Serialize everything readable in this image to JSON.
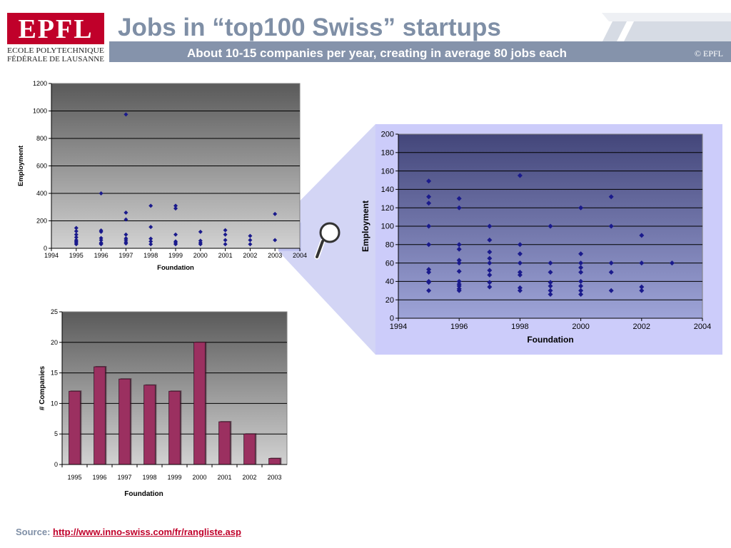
{
  "header": {
    "title": "Jobs in “top100 Swiss” startups",
    "subtitle": "About 10-15 companies per year,  creating in average 80 jobs each",
    "copyright": "© EPFL",
    "logo": {
      "mark": "EPFL",
      "line1": "ECOLE POLYTECHNIQUE",
      "line2": "FÉDÉRALE DE LAUSANNE"
    },
    "colors": {
      "accent": "#c0002a",
      "title": "#7f8fa6",
      "band": "#8593ab"
    }
  },
  "source": {
    "label": "Source:",
    "link": "http://www.inno-swiss.com/fr/rangliste.asp"
  },
  "magnifier": {
    "icon": "magnifier-icon"
  },
  "chart_data": [
    {
      "id": "employment_full",
      "type": "scatter",
      "title": "",
      "xlabel": "Foundation",
      "ylabel": "Employment",
      "xlim": [
        1994,
        2004
      ],
      "ylim": [
        0,
        1200
      ],
      "xticks": [
        "1994",
        "1995",
        "1996",
        "1997",
        "1998",
        "1999",
        "2000",
        "2001",
        "2002",
        "2003",
        "2004"
      ],
      "yticks": [
        "0",
        "200",
        "400",
        "600",
        "800",
        "1000",
        "1200"
      ],
      "grid": true,
      "color": "#1a1a8c",
      "points": [
        [
          1995,
          30
        ],
        [
          1995,
          40
        ],
        [
          1995,
          50
        ],
        [
          1995,
          60
        ],
        [
          1995,
          80
        ],
        [
          1995,
          100
        ],
        [
          1995,
          125
        ],
        [
          1995,
          148
        ],
        [
          1996,
          30
        ],
        [
          1996,
          35
        ],
        [
          1996,
          40
        ],
        [
          1996,
          60
        ],
        [
          1996,
          75
        ],
        [
          1996,
          120
        ],
        [
          1996,
          130
        ],
        [
          1996,
          400
        ],
        [
          1997,
          35
        ],
        [
          1997,
          45
        ],
        [
          1997,
          60
        ],
        [
          1997,
          72
        ],
        [
          1997,
          100
        ],
        [
          1997,
          210
        ],
        [
          1997,
          260
        ],
        [
          1997,
          975
        ],
        [
          1998,
          30
        ],
        [
          1998,
          50
        ],
        [
          1998,
          70
        ],
        [
          1998,
          155
        ],
        [
          1998,
          310
        ],
        [
          1999,
          30
        ],
        [
          1999,
          40
        ],
        [
          1999,
          50
        ],
        [
          1999,
          100
        ],
        [
          1999,
          290
        ],
        [
          1999,
          310
        ],
        [
          2000,
          30
        ],
        [
          2000,
          40
        ],
        [
          2000,
          55
        ],
        [
          2000,
          120
        ],
        [
          2001,
          30
        ],
        [
          2001,
          60
        ],
        [
          2001,
          100
        ],
        [
          2001,
          132
        ],
        [
          2002,
          30
        ],
        [
          2002,
          60
        ],
        [
          2002,
          90
        ],
        [
          2003,
          60
        ],
        [
          2003,
          250
        ]
      ]
    },
    {
      "id": "employment_zoom",
      "type": "scatter",
      "title": "",
      "xlabel": "Foundation",
      "ylabel": "Employment",
      "xlim": [
        1994,
        2004
      ],
      "ylim": [
        0,
        200
      ],
      "xticks": [
        "1994",
        "1996",
        "1998",
        "2000",
        "2002",
        "2004"
      ],
      "yticks": [
        "0",
        "20",
        "40",
        "60",
        "80",
        "100",
        "120",
        "140",
        "160",
        "180",
        "200"
      ],
      "grid": true,
      "color": "#1a1a8c",
      "points": [
        [
          1995,
          30
        ],
        [
          1995,
          39
        ],
        [
          1995,
          40
        ],
        [
          1995,
          50
        ],
        [
          1995,
          53
        ],
        [
          1995,
          80
        ],
        [
          1995,
          100
        ],
        [
          1995,
          125
        ],
        [
          1995,
          132
        ],
        [
          1995,
          149
        ],
        [
          1996,
          30
        ],
        [
          1996,
          32
        ],
        [
          1996,
          35
        ],
        [
          1996,
          37
        ],
        [
          1996,
          40
        ],
        [
          1996,
          51
        ],
        [
          1996,
          60
        ],
        [
          1996,
          63
        ],
        [
          1996,
          75
        ],
        [
          1996,
          80
        ],
        [
          1996,
          120
        ],
        [
          1996,
          130
        ],
        [
          1997,
          34
        ],
        [
          1997,
          39
        ],
        [
          1997,
          47
        ],
        [
          1997,
          52
        ],
        [
          1997,
          60
        ],
        [
          1997,
          65
        ],
        [
          1997,
          72
        ],
        [
          1997,
          85
        ],
        [
          1997,
          100
        ],
        [
          1998,
          30
        ],
        [
          1998,
          33
        ],
        [
          1998,
          47
        ],
        [
          1998,
          50
        ],
        [
          1998,
          60
        ],
        [
          1998,
          70
        ],
        [
          1998,
          80
        ],
        [
          1998,
          155
        ],
        [
          1999,
          26
        ],
        [
          1999,
          30
        ],
        [
          1999,
          35
        ],
        [
          1999,
          39
        ],
        [
          1999,
          50
        ],
        [
          1999,
          60
        ],
        [
          1999,
          100
        ],
        [
          2000,
          26
        ],
        [
          2000,
          30
        ],
        [
          2000,
          35
        ],
        [
          2000,
          40
        ],
        [
          2000,
          50
        ],
        [
          2000,
          55
        ],
        [
          2000,
          60
        ],
        [
          2000,
          70
        ],
        [
          2000,
          120
        ],
        [
          2001,
          30
        ],
        [
          2001,
          50
        ],
        [
          2001,
          60
        ],
        [
          2001,
          100
        ],
        [
          2001,
          132
        ],
        [
          2002,
          30
        ],
        [
          2002,
          34
        ],
        [
          2002,
          60
        ],
        [
          2002,
          90
        ],
        [
          2003,
          60
        ]
      ]
    },
    {
      "id": "companies",
      "type": "bar",
      "title": "",
      "xlabel": "Foundation",
      "ylabel": "# Companies",
      "categories": [
        "1995",
        "1996",
        "1997",
        "1998",
        "1999",
        "2000",
        "2001",
        "2002",
        "2003"
      ],
      "values": [
        12,
        16,
        14,
        13,
        12,
        20,
        7,
        5,
        1
      ],
      "ylim": [
        0,
        25
      ],
      "yticks": [
        "0",
        "5",
        "10",
        "15",
        "20",
        "25"
      ],
      "grid": true,
      "color": "#9b3060"
    }
  ]
}
